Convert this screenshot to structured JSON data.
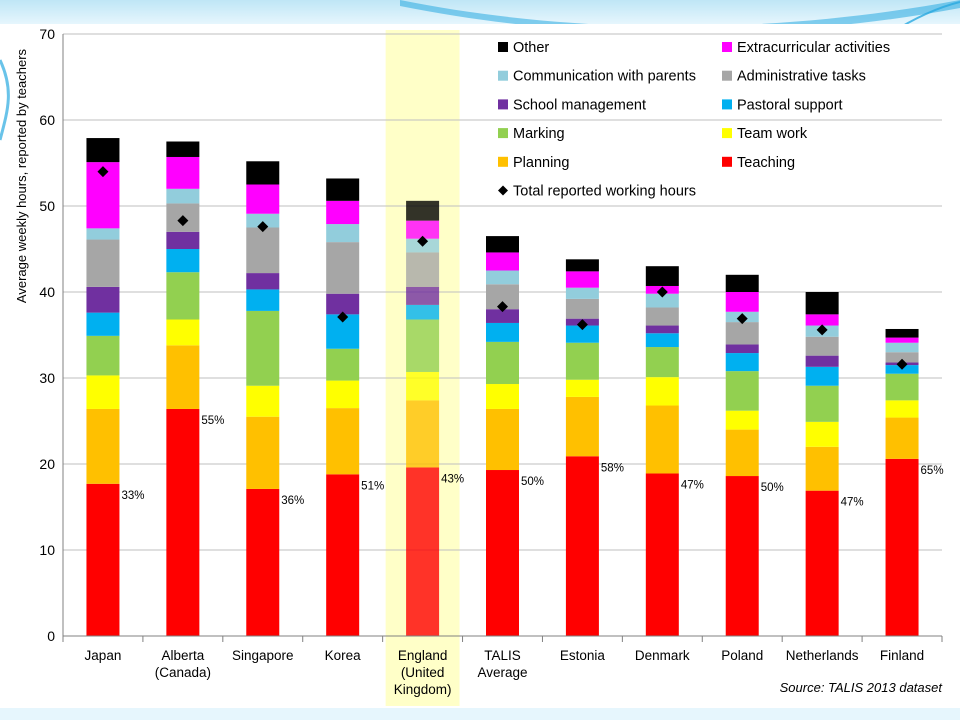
{
  "slide": {
    "accent_color": "#29a9e0",
    "panel_bg": "#ffffff"
  },
  "chart_data": {
    "type": "bar",
    "stacked": true,
    "ylabel": "Average weekly hours, reported by teachers",
    "ylim": [
      0,
      70
    ],
    "yticks": [
      0,
      10,
      20,
      30,
      40,
      50,
      60,
      70
    ],
    "grid": true,
    "legend_position": "top-right",
    "source": "Source: TALIS 2013 dataset",
    "highlight_category": "England (United Kingdom)",
    "highlight_color": "#ffffc8",
    "categories": [
      "Japan",
      "Alberta (Canada)",
      "Singapore",
      "Korea",
      "England (United Kingdom)",
      "TALIS Average",
      "Estonia",
      "Denmark",
      "Poland",
      "Netherlands",
      "Finland"
    ],
    "category_lines": [
      [
        "Japan"
      ],
      [
        "Alberta",
        "(Canada)"
      ],
      [
        "Singapore"
      ],
      [
        "Korea"
      ],
      [
        "England",
        "(United",
        "Kingdom)"
      ],
      [
        "TALIS",
        "Average"
      ],
      [
        "Estonia"
      ],
      [
        "Denmark"
      ],
      [
        "Poland"
      ],
      [
        "Netherlands"
      ],
      [
        "Finland"
      ]
    ],
    "series": [
      {
        "name": "Teaching",
        "color": "#ff0000",
        "values": [
          17.7,
          26.4,
          17.1,
          18.8,
          19.6,
          19.3,
          20.9,
          18.9,
          18.6,
          16.9,
          20.6
        ]
      },
      {
        "name": "Planning",
        "color": "#ffc000",
        "values": [
          8.7,
          7.4,
          8.4,
          7.7,
          7.8,
          7.1,
          6.9,
          7.9,
          5.4,
          5.1,
          4.8
        ]
      },
      {
        "name": "Team work",
        "color": "#ffff00",
        "values": [
          3.9,
          3.0,
          3.6,
          3.2,
          3.3,
          2.9,
          2.0,
          3.3,
          2.2,
          2.9,
          2.0
        ]
      },
      {
        "name": "Marking",
        "color": "#92d050",
        "values": [
          4.6,
          5.5,
          8.7,
          3.7,
          6.1,
          4.9,
          4.3,
          3.5,
          4.6,
          4.2,
          3.1
        ]
      },
      {
        "name": "Pastoral support",
        "color": "#00b0f0",
        "values": [
          2.7,
          2.7,
          2.5,
          4.0,
          1.7,
          2.2,
          2.0,
          1.6,
          2.1,
          2.2,
          1.0
        ]
      },
      {
        "name": "School management",
        "color": "#7030a0",
        "values": [
          3.0,
          2.0,
          1.9,
          2.4,
          2.1,
          1.6,
          0.8,
          0.9,
          1.0,
          1.3,
          0.3
        ]
      },
      {
        "name": "Administrative tasks",
        "color": "#a6a6a6",
        "values": [
          5.5,
          3.3,
          5.3,
          6.0,
          4.0,
          2.9,
          2.3,
          2.1,
          2.6,
          2.2,
          1.2
        ]
      },
      {
        "name": "Communication with parents",
        "color": "#92cddc",
        "values": [
          1.3,
          1.7,
          1.6,
          2.1,
          1.6,
          1.6,
          1.3,
          1.6,
          1.2,
          1.3,
          1.1
        ]
      },
      {
        "name": "Extracurricular activities",
        "color": "#ff00ff",
        "values": [
          7.7,
          3.7,
          3.4,
          2.7,
          2.1,
          2.1,
          1.9,
          0.9,
          2.3,
          1.3,
          0.6
        ]
      },
      {
        "name": "Other",
        "color": "#000000",
        "values": [
          2.8,
          1.8,
          2.7,
          2.6,
          2.3,
          1.9,
          1.4,
          2.3,
          2.0,
          2.6,
          1.0
        ]
      }
    ],
    "total_reported_working_hours": {
      "name": "Total reported working hours",
      "values": [
        54.0,
        48.3,
        47.6,
        37.1,
        45.9,
        38.3,
        36.2,
        40.0,
        36.9,
        35.6,
        31.6
      ]
    },
    "teaching_share_labels": [
      "33%",
      "55%",
      "36%",
      "51%",
      "43%",
      "50%",
      "58%",
      "47%",
      "50%",
      "47%",
      "65%"
    ],
    "legend": [
      {
        "name": "Other",
        "marker": "square",
        "color": "#000000"
      },
      {
        "name": "Extracurricular activities",
        "marker": "square",
        "color": "#ff00ff"
      },
      {
        "name": "Communication with parents",
        "marker": "square",
        "color": "#92cddc"
      },
      {
        "name": "Administrative tasks",
        "marker": "square",
        "color": "#a6a6a6"
      },
      {
        "name": "School management",
        "marker": "square",
        "color": "#7030a0"
      },
      {
        "name": "Pastoral support",
        "marker": "square",
        "color": "#00b0f0"
      },
      {
        "name": "Marking",
        "marker": "square",
        "color": "#92d050"
      },
      {
        "name": "Team work",
        "marker": "square",
        "color": "#ffff00"
      },
      {
        "name": "Planning",
        "marker": "square",
        "color": "#ffc000"
      },
      {
        "name": "Teaching",
        "marker": "square",
        "color": "#ff0000"
      },
      {
        "name": "Total reported working hours",
        "marker": "diamond",
        "color": "#000000"
      }
    ]
  }
}
